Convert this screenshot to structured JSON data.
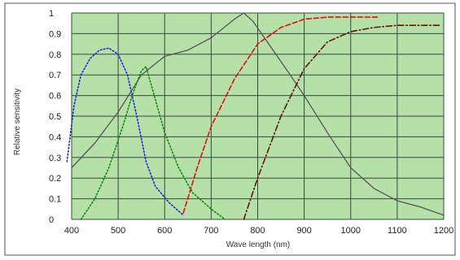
{
  "chart_data": {
    "type": "line",
    "xlabel": "Wave length  (nm)",
    "ylabel": "Relative sensitivity",
    "xlim": [
      400,
      1200
    ],
    "ylim": [
      0,
      1
    ],
    "x_ticks": [
      "400",
      "500",
      "600",
      "700",
      "800",
      "900",
      "1000",
      "1100",
      "1200"
    ],
    "y_ticks": [
      "0",
      "0.1",
      "0.2",
      "0.3",
      "0.4",
      "0.5",
      "0.6",
      "0.7",
      "0.8",
      "0.9",
      "1"
    ],
    "grid": true,
    "plot_background": "#b5e0a8",
    "grid_color": "#3a4a3a",
    "series": [
      {
        "style": "solid",
        "color": "#555555",
        "points": [
          [
            400,
            0.25
          ],
          [
            450,
            0.37
          ],
          [
            500,
            0.52
          ],
          [
            550,
            0.7
          ],
          [
            600,
            0.79
          ],
          [
            650,
            0.82
          ],
          [
            700,
            0.88
          ],
          [
            750,
            0.97
          ],
          [
            770,
            1.0
          ],
          [
            790,
            0.96
          ],
          [
            830,
            0.83
          ],
          [
            870,
            0.7
          ],
          [
            900,
            0.6
          ],
          [
            950,
            0.42
          ],
          [
            1000,
            0.25
          ],
          [
            1050,
            0.15
          ],
          [
            1100,
            0.09
          ],
          [
            1150,
            0.06
          ],
          [
            1200,
            0.02
          ]
        ]
      },
      {
        "style": "dotted",
        "color": "#2222dd",
        "points": [
          [
            390,
            0.28
          ],
          [
            405,
            0.55
          ],
          [
            420,
            0.7
          ],
          [
            440,
            0.78
          ],
          [
            460,
            0.82
          ],
          [
            480,
            0.83
          ],
          [
            500,
            0.8
          ],
          [
            520,
            0.7
          ],
          [
            540,
            0.5
          ],
          [
            560,
            0.28
          ],
          [
            580,
            0.16
          ],
          [
            610,
            0.08
          ],
          [
            640,
            0.02
          ]
        ]
      },
      {
        "style": "dotted",
        "color": "#118811",
        "points": [
          [
            420,
            0.0
          ],
          [
            450,
            0.1
          ],
          [
            480,
            0.25
          ],
          [
            510,
            0.45
          ],
          [
            530,
            0.6
          ],
          [
            550,
            0.72
          ],
          [
            560,
            0.74
          ],
          [
            575,
            0.62
          ],
          [
            600,
            0.42
          ],
          [
            630,
            0.25
          ],
          [
            660,
            0.13
          ],
          [
            700,
            0.05
          ],
          [
            730,
            0.0
          ]
        ]
      },
      {
        "style": "dashed",
        "color": "#dd1111",
        "points": [
          [
            640,
            0.03
          ],
          [
            670,
            0.25
          ],
          [
            700,
            0.45
          ],
          [
            750,
            0.68
          ],
          [
            800,
            0.85
          ],
          [
            850,
            0.93
          ],
          [
            900,
            0.97
          ],
          [
            950,
            0.98
          ],
          [
            1000,
            0.98
          ],
          [
            1060,
            0.98
          ]
        ]
      },
      {
        "style": "dashdot",
        "color": "#661111",
        "points": [
          [
            770,
            0.0
          ],
          [
            800,
            0.2
          ],
          [
            850,
            0.5
          ],
          [
            900,
            0.73
          ],
          [
            950,
            0.86
          ],
          [
            1000,
            0.91
          ],
          [
            1050,
            0.93
          ],
          [
            1100,
            0.94
          ],
          [
            1150,
            0.94
          ],
          [
            1190,
            0.94
          ]
        ]
      }
    ]
  }
}
